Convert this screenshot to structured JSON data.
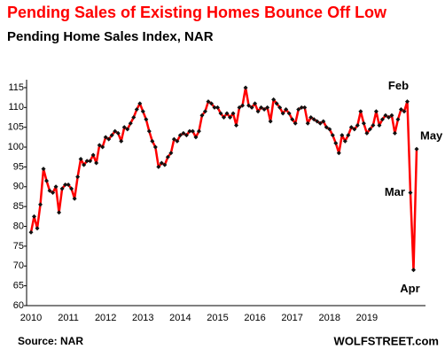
{
  "chart_data": {
    "type": "line",
    "title": "Pending Sales of Existing Homes Bounce Off Low",
    "subtitle": "Pending Home Sales Index, NAR",
    "source": "Source: NAR",
    "credit": "WOLFSTREET.com",
    "annotations": [
      "Feb",
      "Mar",
      "Apr",
      "May"
    ],
    "categories": [
      "2010",
      null,
      null,
      null,
      null,
      null,
      null,
      null,
      null,
      null,
      null,
      null,
      "2011",
      null,
      null,
      null,
      null,
      null,
      null,
      null,
      null,
      null,
      null,
      null,
      "2012",
      null,
      null,
      null,
      null,
      null,
      null,
      null,
      null,
      null,
      null,
      null,
      "2013",
      null,
      null,
      null,
      null,
      null,
      null,
      null,
      null,
      null,
      null,
      null,
      "2014",
      null,
      null,
      null,
      null,
      null,
      null,
      null,
      null,
      null,
      null,
      null,
      "2015",
      null,
      null,
      null,
      null,
      null,
      null,
      null,
      null,
      null,
      null,
      null,
      "2016",
      null,
      null,
      null,
      null,
      null,
      null,
      null,
      null,
      null,
      null,
      null,
      "2017",
      null,
      null,
      null,
      null,
      null,
      null,
      null,
      null,
      null,
      null,
      null,
      "2018",
      null,
      null,
      null,
      null,
      null,
      null,
      null,
      null,
      null,
      null,
      null,
      "2019",
      null,
      null,
      null,
      null,
      null,
      null,
      null,
      null,
      null,
      null,
      null,
      null,
      null,
      null,
      null,
      null
    ],
    "series": [
      {
        "color": "#ff0000",
        "marker_color": "#111111",
        "values": [
          78.5,
          82.5,
          79.5,
          85.5,
          94.5,
          91.5,
          89,
          88.5,
          90,
          83.5,
          89.5,
          90.5,
          90.5,
          89.5,
          87,
          92.5,
          97,
          95.5,
          96.5,
          96.5,
          98,
          96,
          100.5,
          100,
          102.5,
          102,
          103,
          104,
          103.5,
          101.5,
          105,
          104.5,
          106,
          107.5,
          109.5,
          111,
          109,
          107,
          104,
          101.5,
          100,
          95,
          96,
          95.5,
          97.5,
          98.5,
          102,
          101.5,
          103,
          103.5,
          103,
          104,
          104,
          102.5,
          104,
          108,
          109,
          111.5,
          111,
          110,
          110,
          108.5,
          107.5,
          108.5,
          107.5,
          108.5,
          105.5,
          110,
          110.5,
          115,
          110.5,
          110,
          111,
          109,
          110,
          109.5,
          110,
          106.5,
          112,
          111,
          110,
          108.5,
          109.5,
          108.5,
          107,
          106,
          109.5,
          110,
          110,
          106,
          107.5,
          107,
          106.5,
          106,
          106.5,
          105,
          104.5,
          103,
          101,
          98.5,
          103,
          101.5,
          103,
          105,
          104.5,
          105.5,
          109,
          106,
          103.5,
          104.5,
          105.5,
          109,
          105.5,
          107,
          108,
          107.5,
          108,
          103.5,
          107,
          109.5,
          109,
          111.5,
          88.5,
          69,
          99.5
        ]
      }
    ],
    "ylim": [
      60,
      117
    ],
    "yticks": [
      60,
      65,
      70,
      75,
      80,
      85,
      90,
      95,
      100,
      105,
      110,
      115
    ]
  }
}
